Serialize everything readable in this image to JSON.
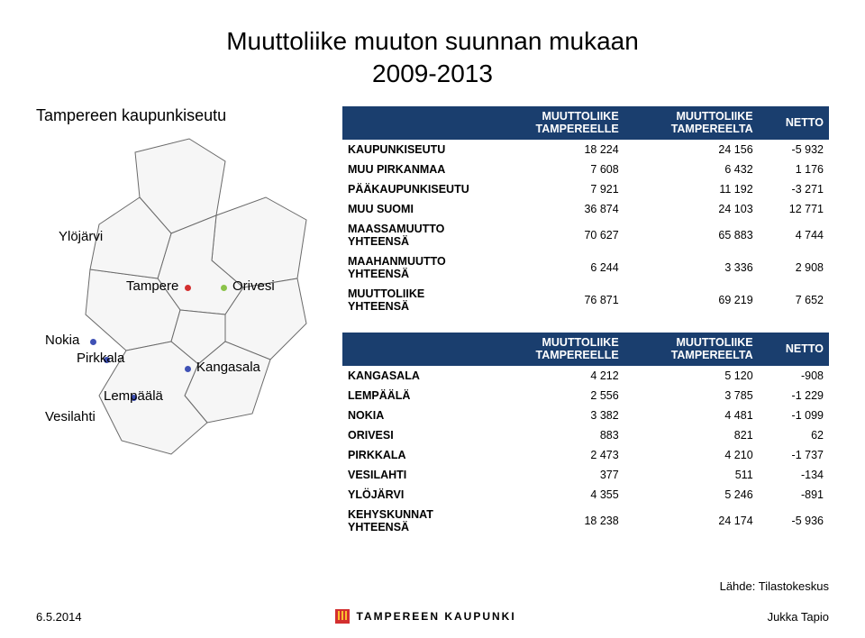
{
  "title_line1": "Muuttoliike muuton suunnan mukaan",
  "title_line2": "2009-2013",
  "region_label": "Tampereen kaupunkiseutu",
  "map": {
    "labels": {
      "ylojarvi": "Ylöjärvi",
      "tampere": "Tampere",
      "orivesi": "Orivesi",
      "nokia": "Nokia",
      "pirkkala": "Pirkkala",
      "lempaala": "Lempäälä",
      "vesilahti": "Vesilahti",
      "kangasala": "Kangasala"
    },
    "dot_colors": {
      "tampere": "#d32f2f",
      "orivesi": "#8bc34a",
      "nokia": "#3f51b5",
      "pirkkala": "#3f51b5",
      "lempaala": "#3f51b5",
      "kangasala": "#3f51b5"
    },
    "outline_color": "#6a6a6a",
    "fill_color": "#f6f6f6"
  },
  "table_header": {
    "col1_line1": "MUUTTOLIIKE",
    "col1_line2": "TAMPEREELLE",
    "col2_line1": "MUUTTOLIIKE",
    "col2_line2": "TAMPEREELTA",
    "col3": "NETTO"
  },
  "table1_rows": [
    {
      "label": "KAUPUNKISEUTU",
      "a": "18 224",
      "b": "24 156",
      "c": "-5 932"
    },
    {
      "label": "MUU PIRKANMAA",
      "a": "7 608",
      "b": "6 432",
      "c": "1 176"
    },
    {
      "label": "PÄÄKAUPUNKISEUTU",
      "a": "7 921",
      "b": "11 192",
      "c": "-3 271"
    },
    {
      "label": "MUU SUOMI",
      "a": "36 874",
      "b": "24 103",
      "c": "12 771"
    },
    {
      "label": "MAASSAMUUTTO YHTEENSÄ",
      "a": "70 627",
      "b": "65 883",
      "c": "4 744"
    },
    {
      "label": "MAAHANMUUTTO YHTEENSÄ",
      "a": "6 244",
      "b": "3 336",
      "c": "2 908"
    },
    {
      "label": "MUUTTOLIIKE YHTEENSÄ",
      "a": "76 871",
      "b": "69 219",
      "c": "7 652"
    }
  ],
  "table2_rows": [
    {
      "label": "KANGASALA",
      "a": "4 212",
      "b": "5 120",
      "c": "-908"
    },
    {
      "label": "LEMPÄÄLÄ",
      "a": "2 556",
      "b": "3 785",
      "c": "-1 229"
    },
    {
      "label": "NOKIA",
      "a": "3 382",
      "b": "4 481",
      "c": "-1 099"
    },
    {
      "label": "ORIVESI",
      "a": "883",
      "b": "821",
      "c": "62"
    },
    {
      "label": "PIRKKALA",
      "a": "2 473",
      "b": "4 210",
      "c": "-1 737"
    },
    {
      "label": "VESILAHTI",
      "a": "377",
      "b": "511",
      "c": "-134"
    },
    {
      "label": "YLÖJÄRVI",
      "a": "4 355",
      "b": "5 246",
      "c": "-891"
    },
    {
      "label": "KEHYSKUNNAT YHTEENSÄ",
      "a": "18 238",
      "b": "24 174",
      "c": "-5 936"
    }
  ],
  "source_text": "Lähde: Tilastokeskus",
  "footer": {
    "date": "6.5.2014",
    "org": "TAMPEREEN KAUPUNKI",
    "author": "Jukka Tapio"
  },
  "colors": {
    "header_bg": "#1a3e6e",
    "header_fg": "#ffffff",
    "title_fg": "#000000"
  }
}
